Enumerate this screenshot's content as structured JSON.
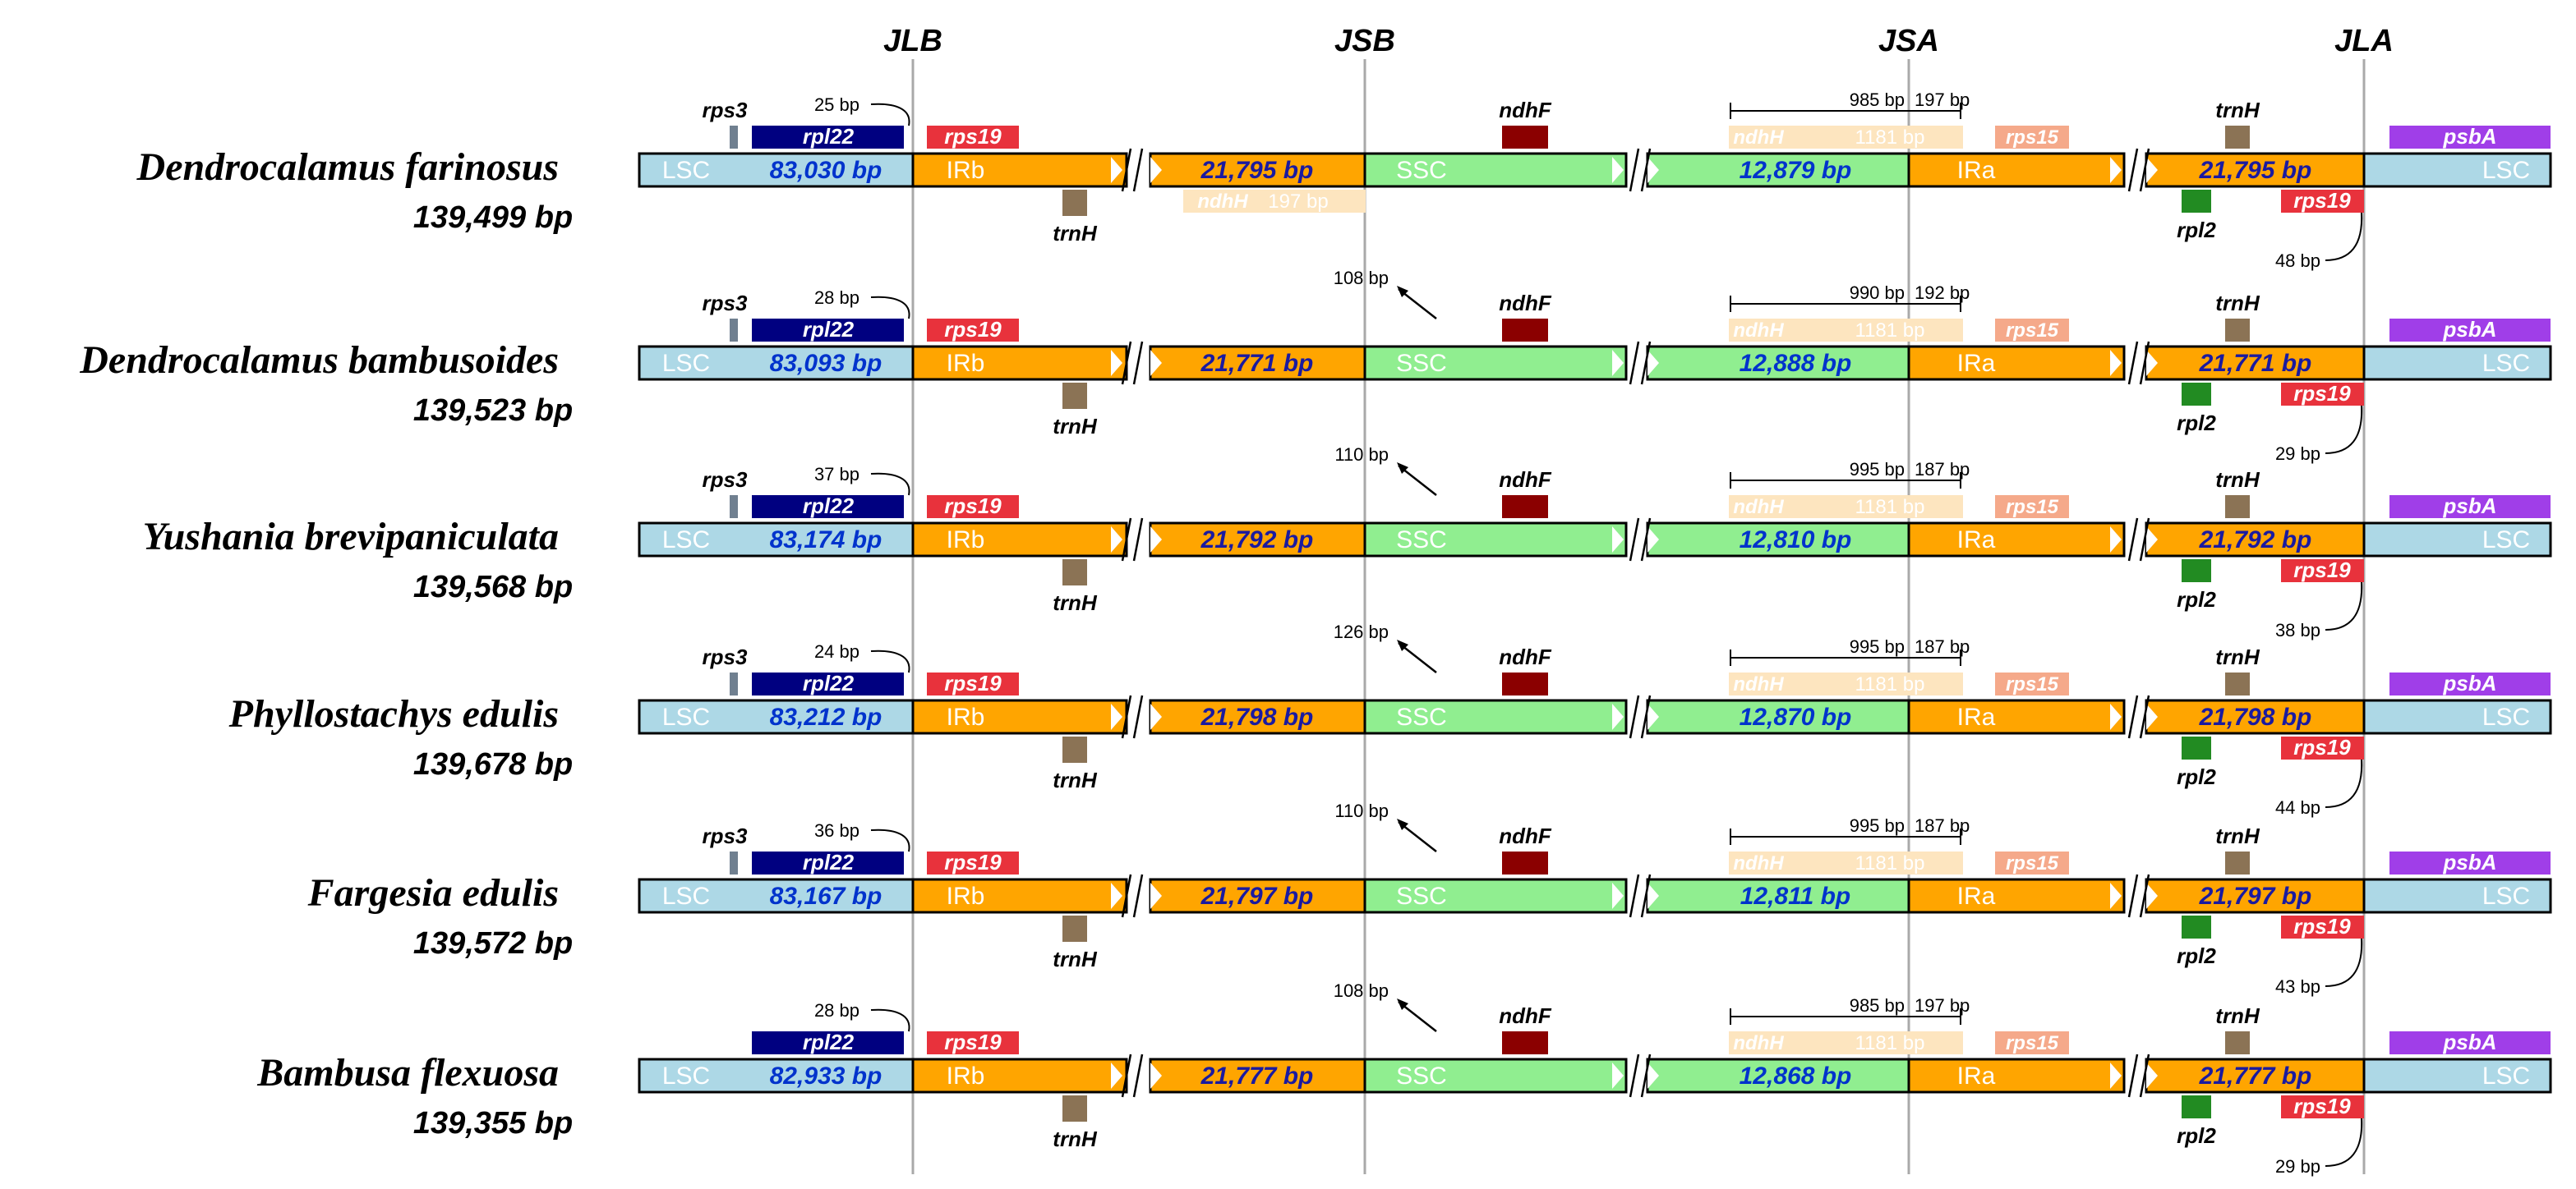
{
  "junctions": [
    "JLB",
    "JSB",
    "JSA",
    "JLA"
  ],
  "region_labels": {
    "lsc": "LSC",
    "irb": "IRb",
    "ssc": "SSC",
    "ira": "IRa"
  },
  "common_genes": {
    "rpl22": "rpl22",
    "rps19": "rps19",
    "trnH": "trnH",
    "ndhF": "ndhF",
    "ndhH": "ndhH",
    "rps15": "rps15",
    "rpl2": "rpl2",
    "psbA": "psbA",
    "rps3": "rps3"
  },
  "ndhH_span": "1181 bp",
  "species": [
    {
      "name": "Dendrocalamus farinosus",
      "total": "139,499 bp",
      "lsc": "83,030 bp",
      "irb": "21,795 bp",
      "ssc": "12,879 bp",
      "ira": "21,795 bp",
      "rpl22_gap": "25 bp",
      "ssc_offset": "",
      "ndhH_left": "985 bp",
      "ndhH_right": "197 bp",
      "rps19_gap": "48 bp",
      "ndhH_irb_span": "197 bp",
      "has_rps3": true
    },
    {
      "name": "Dendrocalamus bambusoides",
      "total": "139,523 bp",
      "lsc": "83,093 bp",
      "irb": "21,771 bp",
      "ssc": "12,888 bp",
      "ira": "21,771 bp",
      "rpl22_gap": "28 bp",
      "ssc_offset": "108 bp",
      "ndhH_left": "990 bp",
      "ndhH_right": "192 bp",
      "rps19_gap": "29 bp",
      "has_rps3": true
    },
    {
      "name": "Yushania brevipaniculata",
      "total": "139,568 bp",
      "lsc": "83,174 bp",
      "irb": "21,792 bp",
      "ssc": "12,810 bp",
      "ira": "21,792 bp",
      "rpl22_gap": "37 bp",
      "ssc_offset": "110 bp",
      "ndhH_left": "995 bp",
      "ndhH_right": "187 bp",
      "rps19_gap": "38 bp",
      "has_rps3": true
    },
    {
      "name": "Phyllostachys edulis",
      "total": "139,678 bp",
      "lsc": "83,212 bp",
      "irb": "21,798 bp",
      "ssc": "12,870 bp",
      "ira": "21,798 bp",
      "rpl22_gap": "24 bp",
      "ssc_offset": "126 bp",
      "ndhH_left": "995 bp",
      "ndhH_right": "187 bp",
      "rps19_gap": "44 bp",
      "has_rps3": true
    },
    {
      "name": "Fargesia edulis",
      "total": "139,572 bp",
      "lsc": "83,167 bp",
      "irb": "21,797 bp",
      "ssc": "12,811 bp",
      "ira": "21,797 bp",
      "rpl22_gap": "36 bp",
      "ssc_offset": "110 bp",
      "ndhH_left": "995 bp",
      "ndhH_right": "187 bp",
      "rps19_gap": "43 bp",
      "has_rps3": true
    },
    {
      "name": "Bambusa flexuosa",
      "total": "139,355 bp",
      "lsc": "82,933 bp",
      "irb": "21,777 bp",
      "ssc": "12,868 bp",
      "ira": "21,777 bp",
      "rpl22_gap": "28 bp",
      "ssc_offset": "108 bp",
      "ndhH_left": "985 bp",
      "ndhH_right": "197 bp",
      "rps19_gap": "29 bp",
      "has_rps3": false
    }
  ],
  "colors": {
    "lsc": "#add8e6",
    "ir": "#ffa500",
    "ssc": "#90ee90",
    "rpl22": "#000080",
    "rps19": "#e8323c",
    "trnH": "#8b7355",
    "ndhF": "#8b0000",
    "ndhH": "#fde5bf",
    "rps15": "#f5a98a",
    "rpl2": "#228b22",
    "psbA": "#a03ee8",
    "rps3": "#708090",
    "junction": "#a9a9a9",
    "bp_blue": "#0033cc"
  }
}
